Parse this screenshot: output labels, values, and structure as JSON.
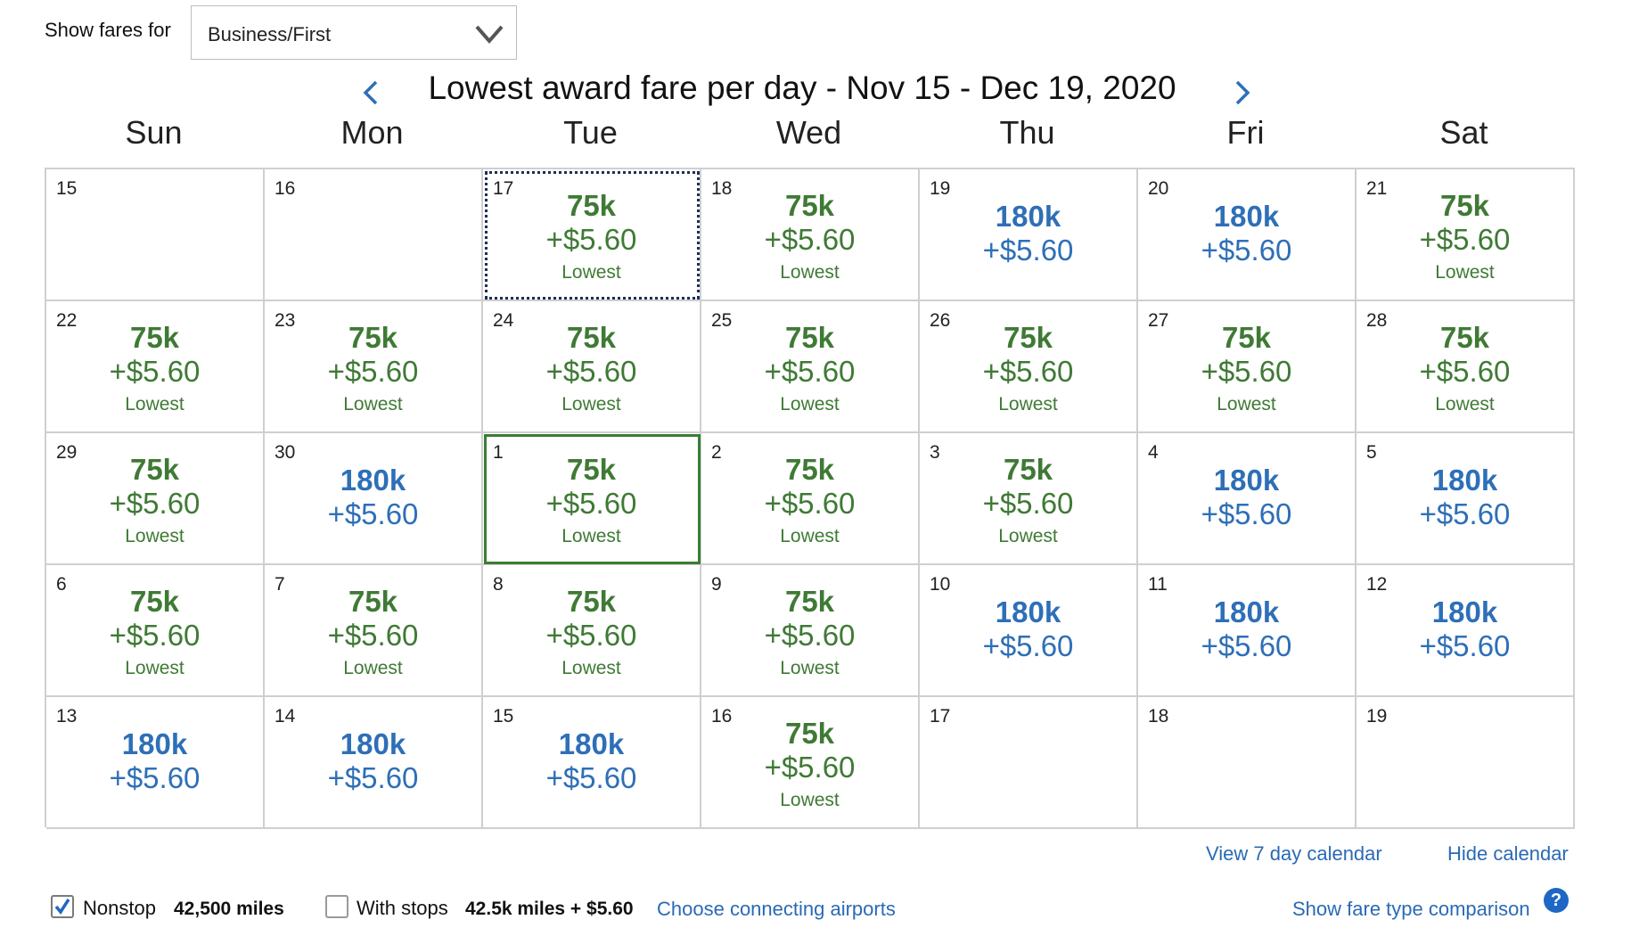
{
  "filter": {
    "label": "Show fares for",
    "value": "Business/First"
  },
  "header": {
    "title": "Lowest award fare per day - Nov 15 - Dec 19, 2020",
    "prev_icon": "chevron-left-icon",
    "next_icon": "chevron-right-icon"
  },
  "days_of_week": [
    "Sun",
    "Mon",
    "Tue",
    "Wed",
    "Thu",
    "Fri",
    "Sat"
  ],
  "colors": {
    "lowest": "#3f7a35",
    "standard": "#2e6fb7",
    "link": "#2a6ab5"
  },
  "calendar": [
    {
      "day": "15"
    },
    {
      "day": "16"
    },
    {
      "day": "17",
      "miles": "75k",
      "tax": "+$5.60",
      "note": "Lowest",
      "tone": "green",
      "state": "selected"
    },
    {
      "day": "18",
      "miles": "75k",
      "tax": "+$5.60",
      "note": "Lowest",
      "tone": "green"
    },
    {
      "day": "19",
      "miles": "180k",
      "tax": "+$5.60",
      "tone": "blue"
    },
    {
      "day": "20",
      "miles": "180k",
      "tax": "+$5.60",
      "tone": "blue"
    },
    {
      "day": "21",
      "miles": "75k",
      "tax": "+$5.60",
      "note": "Lowest",
      "tone": "green"
    },
    {
      "day": "22",
      "miles": "75k",
      "tax": "+$5.60",
      "note": "Lowest",
      "tone": "green"
    },
    {
      "day": "23",
      "miles": "75k",
      "tax": "+$5.60",
      "note": "Lowest",
      "tone": "green"
    },
    {
      "day": "24",
      "miles": "75k",
      "tax": "+$5.60",
      "note": "Lowest",
      "tone": "green"
    },
    {
      "day": "25",
      "miles": "75k",
      "tax": "+$5.60",
      "note": "Lowest",
      "tone": "green"
    },
    {
      "day": "26",
      "miles": "75k",
      "tax": "+$5.60",
      "note": "Lowest",
      "tone": "green"
    },
    {
      "day": "27",
      "miles": "75k",
      "tax": "+$5.60",
      "note": "Lowest",
      "tone": "green"
    },
    {
      "day": "28",
      "miles": "75k",
      "tax": "+$5.60",
      "note": "Lowest",
      "tone": "green"
    },
    {
      "day": "29",
      "miles": "75k",
      "tax": "+$5.60",
      "note": "Lowest",
      "tone": "green"
    },
    {
      "day": "30",
      "miles": "180k",
      "tax": "+$5.60",
      "tone": "blue"
    },
    {
      "day": "1",
      "miles": "75k",
      "tax": "+$5.60",
      "note": "Lowest",
      "tone": "green",
      "state": "today"
    },
    {
      "day": "2",
      "miles": "75k",
      "tax": "+$5.60",
      "note": "Lowest",
      "tone": "green"
    },
    {
      "day": "3",
      "miles": "75k",
      "tax": "+$5.60",
      "note": "Lowest",
      "tone": "green"
    },
    {
      "day": "4",
      "miles": "180k",
      "tax": "+$5.60",
      "tone": "blue"
    },
    {
      "day": "5",
      "miles": "180k",
      "tax": "+$5.60",
      "tone": "blue"
    },
    {
      "day": "6",
      "miles": "75k",
      "tax": "+$5.60",
      "note": "Lowest",
      "tone": "green"
    },
    {
      "day": "7",
      "miles": "75k",
      "tax": "+$5.60",
      "note": "Lowest",
      "tone": "green"
    },
    {
      "day": "8",
      "miles": "75k",
      "tax": "+$5.60",
      "note": "Lowest",
      "tone": "green"
    },
    {
      "day": "9",
      "miles": "75k",
      "tax": "+$5.60",
      "note": "Lowest",
      "tone": "green"
    },
    {
      "day": "10",
      "miles": "180k",
      "tax": "+$5.60",
      "tone": "blue"
    },
    {
      "day": "11",
      "miles": "180k",
      "tax": "+$5.60",
      "tone": "blue"
    },
    {
      "day": "12",
      "miles": "180k",
      "tax": "+$5.60",
      "tone": "blue"
    },
    {
      "day": "13",
      "miles": "180k",
      "tax": "+$5.60",
      "tone": "blue"
    },
    {
      "day": "14",
      "miles": "180k",
      "tax": "+$5.60",
      "tone": "blue"
    },
    {
      "day": "15",
      "miles": "180k",
      "tax": "+$5.60",
      "tone": "blue"
    },
    {
      "day": "16",
      "miles": "75k",
      "tax": "+$5.60",
      "note": "Lowest",
      "tone": "green"
    },
    {
      "day": "17"
    },
    {
      "day": "18"
    },
    {
      "day": "19"
    }
  ],
  "links": {
    "view7": "View 7 day calendar",
    "hide": "Hide calendar",
    "connecting": "Choose connecting airports",
    "comparison": "Show fare type comparison"
  },
  "options": {
    "nonstop": {
      "label": "Nonstop",
      "value": "42,500 miles",
      "checked": true
    },
    "stops": {
      "label": "With stops",
      "value": "42.5k miles + $5.60",
      "checked": false
    }
  }
}
